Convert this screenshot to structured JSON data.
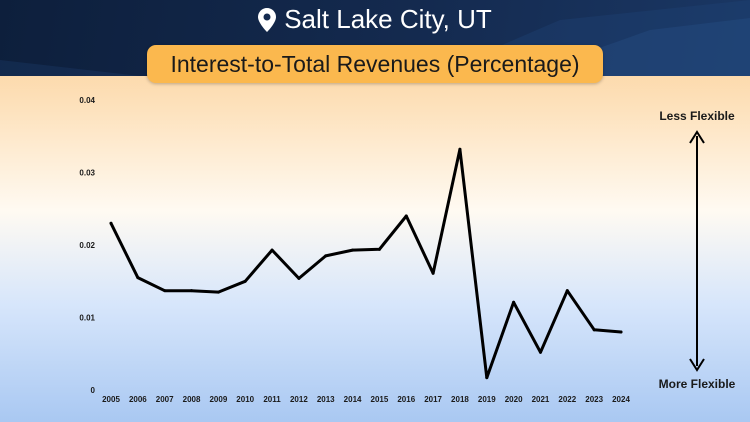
{
  "header": {
    "location": "Salt Lake City, UT",
    "location_icon": "map-pin-icon",
    "title": "Interest-to-Total Revenues (Percentage)"
  },
  "flexibility": {
    "top_label": "Less Flexible",
    "bottom_label": "More Flexible",
    "icon": "double-arrow-vertical-icon"
  },
  "colors": {
    "header_bg": "#142a4f",
    "pill": "#fbb84e",
    "line": "#000000"
  },
  "chart_data": {
    "type": "line",
    "title": "Interest-to-Total Revenues (Percentage)",
    "xlabel": "",
    "ylabel": "",
    "ylim": [
      0,
      0.04
    ],
    "yticks": [
      0,
      0.01,
      0.02,
      0.03,
      0.04
    ],
    "ytick_labels": [
      "0",
      "0.01",
      "0.02",
      "0.03",
      "0.04"
    ],
    "grid": false,
    "x": [
      "2005",
      "2006",
      "2007",
      "2008",
      "2009",
      "2010",
      "2011",
      "2012",
      "2013",
      "2014",
      "2015",
      "2016",
      "2017",
      "2018",
      "2019",
      "2020",
      "2021",
      "2022",
      "2023",
      "2024"
    ],
    "series": [
      {
        "values": [
          0.023,
          0.0155,
          0.0137,
          0.0137,
          0.0135,
          0.015,
          0.0193,
          0.0154,
          0.0185,
          0.0193,
          0.0194,
          0.024,
          0.0161,
          0.0332,
          0.0017,
          0.0121,
          0.0052,
          0.0137,
          0.0083,
          0.008
        ]
      }
    ]
  }
}
